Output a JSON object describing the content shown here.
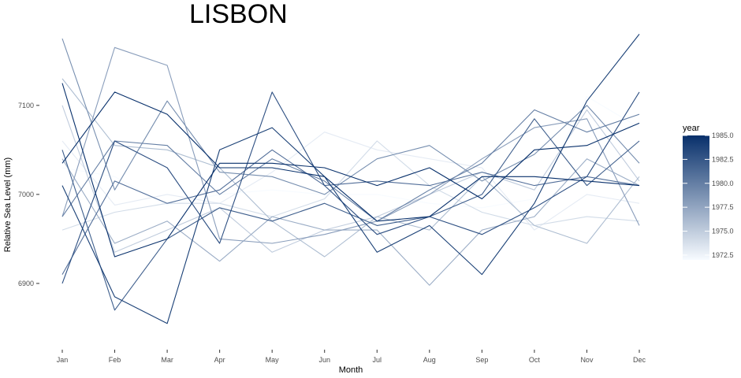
{
  "chart_data": {
    "type": "line",
    "title": "LISBON",
    "xlabel": "Month",
    "ylabel": "Relative Sea Level (mm)",
    "categories": [
      "Jan",
      "Feb",
      "Mar",
      "Apr",
      "May",
      "Jun",
      "Jul",
      "Aug",
      "Sep",
      "Oct",
      "Nov",
      "Dec"
    ],
    "ylim": [
      6838,
      7183
    ],
    "yticks": [
      6900,
      7000,
      7100
    ],
    "grid": false,
    "legend": {
      "title": "year",
      "position": "right",
      "range": [
        1972,
        1985
      ],
      "ticks": [
        "1972.5",
        "1975.0",
        "1977.5",
        "1980.0",
        "1982.5",
        "1985.0"
      ],
      "low_color": "#f7fbff",
      "high_color": "#08306b"
    },
    "series": [
      {
        "year": 1972,
        "values": [
          7030,
          7020,
          6988,
          7000,
          7005,
          7000,
          7000,
          6990,
          6985,
          6995,
          7110,
          7075
        ]
      },
      {
        "year": 1973,
        "values": [
          7060,
          6988,
          7000,
          6990,
          7025,
          7070,
          7050,
          7040,
          7030,
          6960,
          7000,
          6990
        ]
      },
      {
        "year": 1974,
        "values": [
          6960,
          6980,
          6990,
          6990,
          6975,
          6995,
          7060,
          7010,
          6980,
          6965,
          6975,
          6970
        ]
      },
      {
        "year": 1975,
        "values": [
          7100,
          6935,
          6960,
          6985,
          6935,
          6960,
          6975,
          7000,
          7025,
          7005,
          7095,
          7015
        ]
      },
      {
        "year": 1976,
        "values": [
          7130,
          7055,
          7050,
          7030,
          6970,
          6930,
          6975,
          6960,
          7020,
          6965,
          6945,
          7020
        ]
      },
      {
        "year": 1977,
        "values": [
          7040,
          6945,
          6970,
          6925,
          6975,
          6960,
          6960,
          6898,
          6960,
          6975,
          7040,
          7010
        ]
      },
      {
        "year": 1978,
        "values": [
          6975,
          7165,
          7145,
          6950,
          6945,
          6955,
          6970,
          7000,
          7040,
          7075,
          7085,
          6965
        ]
      },
      {
        "year": 1979,
        "values": [
          7175,
          7005,
          7105,
          7025,
          7020,
          7000,
          7040,
          7055,
          7015,
          7045,
          7100,
          7035
        ]
      },
      {
        "year": 1980,
        "values": [
          6975,
          7060,
          7055,
          7000,
          7040,
          7015,
          6970,
          7005,
          7035,
          7095,
          7070,
          7090
        ]
      },
      {
        "year": 1981,
        "values": [
          6910,
          7015,
          6990,
          7005,
          7050,
          7010,
          7015,
          7010,
          7025,
          7010,
          7020,
          7010
        ]
      },
      {
        "year": 1982,
        "values": [
          7050,
          6870,
          6950,
          6985,
          6970,
          6990,
          6965,
          6975,
          7000,
          7085,
          7010,
          7060
        ]
      },
      {
        "year": 1983,
        "values": [
          6900,
          7060,
          7030,
          6945,
          7115,
          7010,
          6955,
          6975,
          6955,
          6985,
          7020,
          7115
        ]
      },
      {
        "year": 1984,
        "values": [
          7010,
          6885,
          6855,
          7050,
          7075,
          7020,
          6935,
          6965,
          6910,
          6990,
          7105,
          7180
        ]
      },
      {
        "year": 1985,
        "values": [
          7125,
          6930,
          6950,
          7035,
          7035,
          7030,
          7010,
          7030,
          6995,
          7050,
          7055,
          7080
        ]
      },
      {
        "year": 1985,
        "values": [
          7035,
          7115,
          7090,
          7030,
          7030,
          7020,
          6970,
          6975,
          7020,
          7020,
          7015,
          7010
        ]
      }
    ]
  }
}
